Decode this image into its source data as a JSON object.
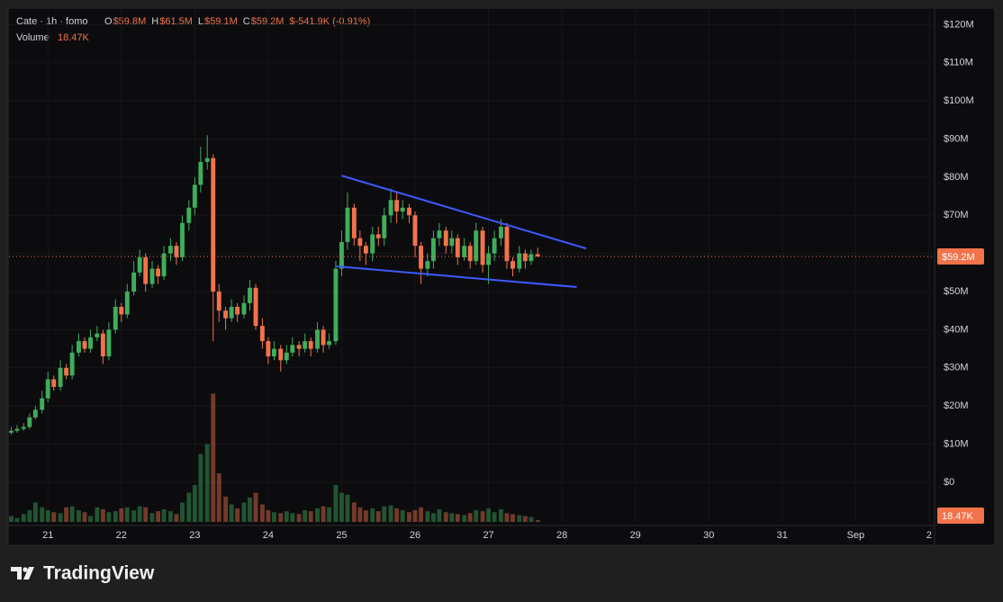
{
  "header": {
    "symbol": "Cate · 1h · fomo",
    "ohlc": [
      {
        "key": "O",
        "value": "$59.8M"
      },
      {
        "key": "H",
        "value": "$61.5M"
      },
      {
        "key": "L",
        "value": "$59.1M"
      },
      {
        "key": "C",
        "value": "$59.2M"
      }
    ],
    "change": "$-541.9K (-0.91%)",
    "volume_label": "Volume",
    "volume_value": "18.47K"
  },
  "chart_data": {
    "type": "candlestick",
    "x": [
      20.5,
      20.58,
      20.67,
      20.75,
      20.83,
      20.92,
      21,
      21.08,
      21.17,
      21.25,
      21.33,
      21.42,
      21.5,
      21.58,
      21.67,
      21.75,
      21.83,
      21.92,
      22,
      22.08,
      22.17,
      22.25,
      22.33,
      22.42,
      22.5,
      22.58,
      22.67,
      22.75,
      22.83,
      22.92,
      23,
      23.08,
      23.17,
      23.25,
      23.33,
      23.42,
      23.5,
      23.58,
      23.67,
      23.75,
      23.83,
      23.92,
      24,
      24.08,
      24.17,
      24.25,
      24.33,
      24.42,
      24.5,
      24.58,
      24.67,
      24.75,
      24.83,
      24.92,
      25,
      25.08,
      25.17,
      25.25,
      25.33,
      25.42,
      25.5,
      25.58,
      25.67,
      25.75,
      25.83,
      25.92,
      26,
      26.08,
      26.17,
      26.25,
      26.33,
      26.42,
      26.5,
      26.58,
      26.67,
      26.75,
      26.83,
      26.92,
      27,
      27.08,
      27.17,
      27.25,
      27.33,
      27.42,
      27.5,
      27.58,
      27.67
    ],
    "open": [
      13,
      13.5,
      14,
      14.5,
      17,
      19,
      22,
      27,
      25,
      30,
      28,
      34,
      37,
      35,
      38,
      39,
      33,
      40,
      46,
      44,
      50,
      55,
      59,
      52,
      56,
      54,
      60,
      62,
      59,
      68,
      72,
      78,
      84,
      85,
      50,
      45,
      43,
      46,
      44,
      47,
      51,
      41,
      37,
      33,
      35,
      32,
      34,
      36,
      35,
      37,
      35,
      40,
      36,
      37,
      56,
      63,
      72,
      64,
      62,
      60,
      65,
      64,
      70,
      74,
      71,
      72,
      70,
      62,
      56,
      58,
      64,
      66,
      62,
      64,
      59,
      62,
      58,
      66,
      57,
      60,
      64,
      67,
      58,
      56,
      60,
      58,
      59.8
    ],
    "high": [
      14.5,
      15,
      15.5,
      18,
      20,
      24,
      29,
      28,
      32,
      31,
      36,
      39,
      38,
      40,
      41,
      40,
      42,
      48,
      47,
      52,
      58,
      61,
      60,
      58,
      57,
      62,
      64,
      63,
      70,
      74,
      80,
      88,
      91,
      86,
      52,
      46,
      48,
      47,
      49,
      53,
      52,
      43,
      38,
      37,
      36,
      36,
      38,
      37,
      39,
      38,
      42,
      41,
      39,
      58,
      66,
      76,
      73,
      66,
      63,
      67,
      67,
      72,
      77,
      76,
      74,
      73,
      71,
      63,
      60,
      66,
      68,
      67,
      66,
      65,
      64,
      63,
      68,
      67,
      62,
      66,
      69,
      68,
      59,
      62,
      61,
      61,
      61.5
    ],
    "low": [
      12.5,
      13,
      13.5,
      14,
      16.5,
      18,
      21,
      24,
      24,
      27,
      27,
      33,
      34,
      34,
      37,
      31,
      32,
      39,
      42,
      43,
      49,
      54,
      50,
      51,
      52,
      53,
      58,
      57,
      58,
      66,
      70,
      76,
      82,
      37,
      42,
      40,
      42,
      42,
      43,
      45,
      40,
      35,
      31,
      32,
      29,
      31,
      33,
      33,
      34,
      33,
      34,
      34,
      35,
      36,
      54,
      61,
      62,
      58,
      57,
      58,
      62,
      62,
      68,
      68,
      69,
      68,
      59,
      52,
      54,
      56,
      62,
      60,
      60,
      57,
      58,
      56,
      57,
      55,
      52,
      58,
      62,
      56,
      54,
      55,
      56,
      57,
      59.1
    ],
    "close": [
      13.5,
      14,
      14.5,
      17,
      19,
      22,
      27,
      25,
      30,
      28,
      34,
      37,
      35,
      38,
      39,
      33,
      40,
      46,
      44,
      50,
      55,
      59,
      52,
      56,
      54,
      60,
      62,
      59,
      68,
      72,
      78,
      84,
      85,
      50,
      45,
      43,
      46,
      44,
      47,
      51,
      41,
      37,
      33,
      35,
      32,
      34,
      36,
      35,
      37,
      35,
      40,
      36,
      37,
      56,
      63,
      72,
      64,
      62,
      60,
      65,
      64,
      70,
      74,
      71,
      72,
      70,
      62,
      56,
      58,
      64,
      66,
      62,
      64,
      59,
      62,
      58,
      66,
      57,
      60,
      64,
      67,
      58,
      56,
      60,
      58,
      59.8,
      59.2
    ],
    "volume": [
      60,
      40,
      80,
      120,
      200,
      150,
      120,
      100,
      90,
      150,
      160,
      120,
      100,
      60,
      150,
      130,
      100,
      110,
      140,
      150,
      120,
      160,
      150,
      90,
      110,
      130,
      110,
      80,
      200,
      300,
      380,
      700,
      800,
      1320,
      500,
      260,
      180,
      140,
      200,
      250,
      300,
      180,
      120,
      100,
      90,
      110,
      90,
      80,
      120,
      110,
      140,
      160,
      150,
      380,
      300,
      280,
      200,
      150,
      120,
      140,
      110,
      160,
      170,
      140,
      120,
      100,
      120,
      150,
      110,
      90,
      130,
      100,
      90,
      80,
      70,
      90,
      120,
      110,
      140,
      100,
      130,
      90,
      80,
      70,
      60,
      50,
      18.47
    ],
    "xlim": [
      20.47,
      33.05
    ],
    "xticks": [
      21,
      22,
      23,
      24,
      25,
      26,
      27,
      28,
      29,
      30,
      31,
      {
        "value": 32,
        "label": "Sep"
      },
      {
        "value": 33,
        "label": "2"
      }
    ],
    "ylim": [
      -10.4,
      124.1
    ],
    "yticks": [
      {
        "value": 0,
        "label": "$0"
      },
      {
        "value": 10,
        "label": "$10M"
      },
      {
        "value": 20,
        "label": "$20M"
      },
      {
        "value": 30,
        "label": "$30M"
      },
      {
        "value": 40,
        "label": "$40M"
      },
      {
        "value": 50,
        "label": "$50M"
      },
      {
        "value": 60,
        "label": "$60M"
      },
      {
        "value": 70,
        "label": "$70M"
      },
      {
        "value": 80,
        "label": "$80M"
      },
      {
        "value": 90,
        "label": "$90M"
      },
      {
        "value": 100,
        "label": "$100M"
      },
      {
        "value": 110,
        "label": "$110M"
      },
      {
        "value": 120,
        "label": "$120M"
      }
    ],
    "vlim": [
      0,
      1500
    ],
    "grid": true,
    "up_color": "#3fae5a",
    "down_color": "#f2734a",
    "last_price": {
      "value": 59.2,
      "label": "$59.2M"
    },
    "last_volume_label": "18.47K",
    "trendlines": [
      {
        "points": [
          [
            25.0,
            80.4
          ],
          [
            28.33,
            61.3
          ]
        ],
        "color": "#3d5afe"
      },
      {
        "points": [
          [
            24.93,
            56.6
          ],
          [
            28.2,
            51.2
          ]
        ],
        "color": "#3d5afe"
      }
    ]
  },
  "branding": "TradingView"
}
